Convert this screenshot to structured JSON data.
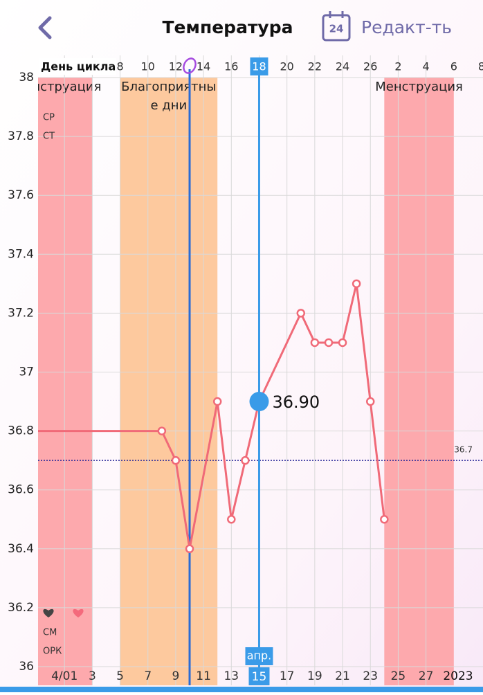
{
  "header": {
    "title": "Температура",
    "calendar_day": "24",
    "edit": "Редакт-ть"
  },
  "chart_data": {
    "type": "line",
    "x_axis_top_label": "День цикла",
    "x": [
      8,
      9,
      10,
      12,
      13,
      14,
      15,
      18,
      19,
      20,
      21,
      22,
      23,
      24
    ],
    "series": [
      {
        "color": "#f06a78",
        "values": [
          36.8,
          36.7,
          36.4,
          36.9,
          36.5,
          36.7,
          36.9,
          37.2,
          37.1,
          37.1,
          37.1,
          37.3,
          36.9,
          36.5
        ]
      }
    ],
    "xlim": [
      -0.9,
      31.1
    ],
    "xticks": [
      {
        "value": 1,
        "label": "4/01"
      },
      3,
      5,
      7,
      9,
      11,
      13,
      15,
      17,
      19,
      21,
      23,
      25,
      27
    ],
    "x_top_ticks": [
      {
        "value": 5,
        "label": "8"
      },
      {
        "value": 7,
        "label": "10"
      },
      {
        "value": 9,
        "label": "12"
      },
      {
        "value": 11,
        "label": "14"
      },
      {
        "value": 13,
        "label": "16"
      },
      {
        "value": 15,
        "label": "18"
      },
      {
        "value": 17,
        "label": "20"
      },
      {
        "value": 19,
        "label": "22"
      },
      {
        "value": 21,
        "label": "24"
      },
      {
        "value": 23,
        "label": "26"
      },
      {
        "value": 25,
        "label": "2"
      },
      {
        "value": 27,
        "label": "4"
      },
      {
        "value": 29,
        "label": "6"
      },
      {
        "value": 31,
        "label": "8"
      }
    ],
    "ylim": [
      36,
      38
    ],
    "yticks": [
      36,
      36.2,
      36.4,
      36.6,
      36.8,
      37,
      37.2,
      37.4,
      37.6,
      37.8,
      38
    ],
    "grid": true,
    "bands": [
      {
        "start": -2,
        "end": 3,
        "color": "#fda9ad",
        "label": [
          "Менструация"
        ]
      },
      {
        "start": 5,
        "end": 12,
        "color": "#fdc99e",
        "label": [
          "Благоприятны",
          "е дни"
        ]
      },
      {
        "start": 24,
        "end": 29,
        "color": "#fda9ad",
        "label": [
          "Менструация"
        ]
      }
    ],
    "ovulation_x": 10,
    "reference_line": 36.7,
    "selected": {
      "x": 15,
      "value": 36.9,
      "value_label": "36.90",
      "month_label": "апр.",
      "date_label": "15",
      "cycle_label": "18"
    },
    "row_labels_top": [
      "СР",
      "СТ"
    ],
    "row_labels_bottom": [
      "СМ",
      "ОРК"
    ],
    "year_label": "2023"
  }
}
